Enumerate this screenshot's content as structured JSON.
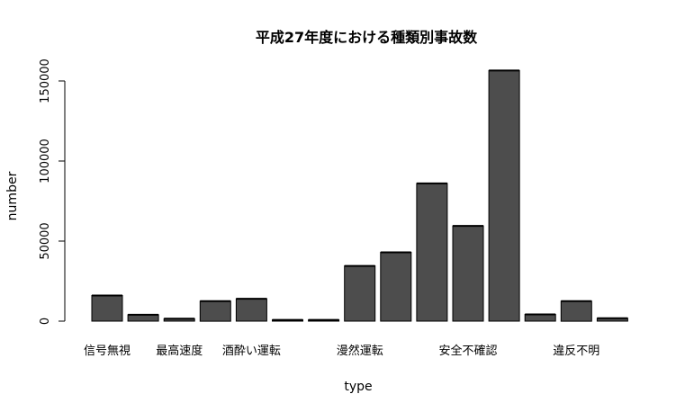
{
  "chart_data": {
    "type": "bar",
    "title": "平成27年度における種類別事故数",
    "xlabel": "type",
    "ylabel": "number",
    "ylim": [
      0,
      160000
    ],
    "yticks": [
      0,
      50000,
      100000,
      150000
    ],
    "ytick_labels": [
      "0",
      "50000",
      "100000",
      "150000"
    ],
    "categories": [
      "信号無視",
      "",
      "最高速度",
      "",
      "酒酔い運転",
      "",
      "",
      "漫然運転",
      "",
      "",
      "安全不確認",
      "",
      "",
      "違反不明",
      ""
    ],
    "values": [
      16000,
      4000,
      1500,
      12500,
      14000,
      800,
      800,
      34500,
      43000,
      86000,
      59500,
      156500,
      4200,
      12500,
      1800
    ],
    "bar_color": "#4d4d4d",
    "border_color": "#000000",
    "grid": false,
    "legend": "none"
  }
}
